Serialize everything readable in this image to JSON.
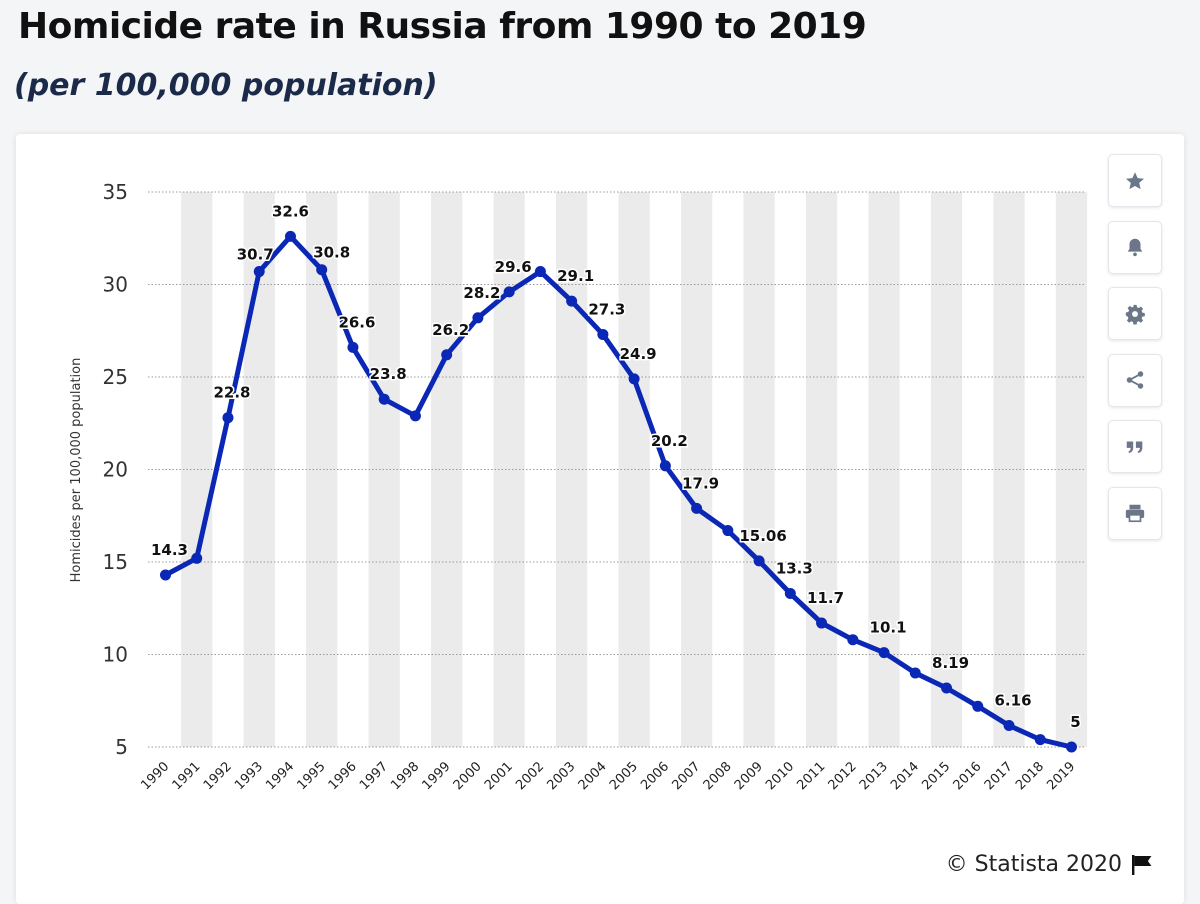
{
  "title": "Homicide rate in Russia from 1990 to 2019",
  "subtitle": "(per 100,000 population)",
  "credit": "© Statista 2020",
  "tools": [
    "star-icon",
    "bell-icon",
    "gear-icon",
    "share-icon",
    "quote-icon",
    "print-icon"
  ],
  "colors": {
    "line": "#0a27b5",
    "stripe": "#ebebeb",
    "grid": "#9a9a9a"
  },
  "chart_data": {
    "type": "line",
    "ylabel": "Homicides per 100,000 population",
    "xlabel": "",
    "ylim": [
      5,
      35
    ],
    "yticks": [
      5,
      10,
      15,
      20,
      25,
      30,
      35
    ],
    "categories": [
      "1990",
      "1991",
      "1992",
      "1993",
      "1994",
      "1995",
      "1996",
      "1997",
      "1998",
      "1999",
      "2000",
      "2001",
      "2002",
      "2003",
      "2004",
      "2005",
      "2006",
      "2007",
      "2008",
      "2009",
      "2010",
      "2011",
      "2012",
      "2013",
      "2014",
      "2015",
      "2016",
      "2017",
      "2018",
      "2019"
    ],
    "series": [
      {
        "name": "Homicide rate",
        "values": [
          14.3,
          15.2,
          22.8,
          30.7,
          32.6,
          30.8,
          26.6,
          23.8,
          22.9,
          26.2,
          28.2,
          29.6,
          30.7,
          29.1,
          27.3,
          24.9,
          20.2,
          17.9,
          16.7,
          15.06,
          13.3,
          11.7,
          10.8,
          10.1,
          9.0,
          8.19,
          7.2,
          6.16,
          5.4,
          5.0
        ]
      }
    ],
    "data_labels": {
      "1990": "14.3",
      "1992": "22.8",
      "1993": "30.7",
      "1994": "32.6",
      "1995": "30.8",
      "1996": "26.6",
      "1997": "23.8",
      "1999": "26.2",
      "2000": "28.2",
      "2001": "29.6",
      "2003": "29.1",
      "2004": "27.3",
      "2005": "24.9",
      "2006": "20.2",
      "2007": "17.9",
      "2009": "15.06",
      "2010": "13.3",
      "2011": "11.7",
      "2013": "10.1",
      "2015": "8.19",
      "2017": "6.16",
      "2019": "5"
    }
  }
}
